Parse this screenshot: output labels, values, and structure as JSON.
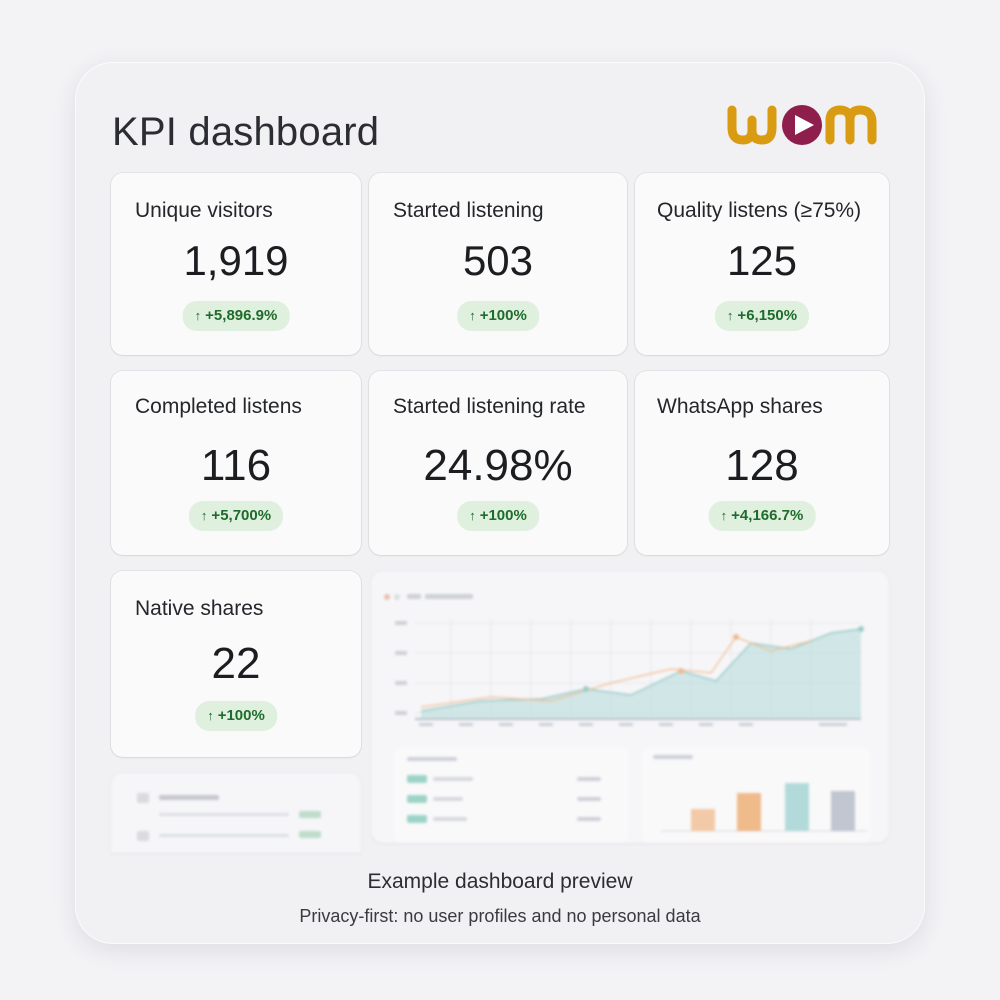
{
  "header": {
    "title": "KPI dashboard",
    "logo_text": "wom"
  },
  "colors": {
    "logo_gold": "#d89b12",
    "logo_purple": "#8e1e4c",
    "delta_bg": "#dff0df",
    "delta_text": "#1f6b2c",
    "chart_teal": "#a9d7d6",
    "chart_orange": "#f3b07c"
  },
  "kpis": [
    {
      "label": "Unique visitors",
      "value": "1,919",
      "delta": "+5,896.9%"
    },
    {
      "label": "Started listening",
      "value": "503",
      "delta": "+100%"
    },
    {
      "label": "Quality listens (≥75%)",
      "value": "125",
      "delta": "+6,150%"
    },
    {
      "label": "Completed listens",
      "value": "116",
      "delta": "+5,700%"
    },
    {
      "label": "Started listening rate",
      "value": "24.98%",
      "delta": "+100%"
    },
    {
      "label": "WhatsApp shares",
      "value": "128",
      "delta": "+4,166.7%"
    },
    {
      "label": "Native shares",
      "value": "22",
      "delta": "+100%"
    }
  ],
  "delta_arrow": "↑",
  "footer": {
    "caption": "Example dashboard preview",
    "note": "Privacy-first: no user profiles and no personal data"
  }
}
